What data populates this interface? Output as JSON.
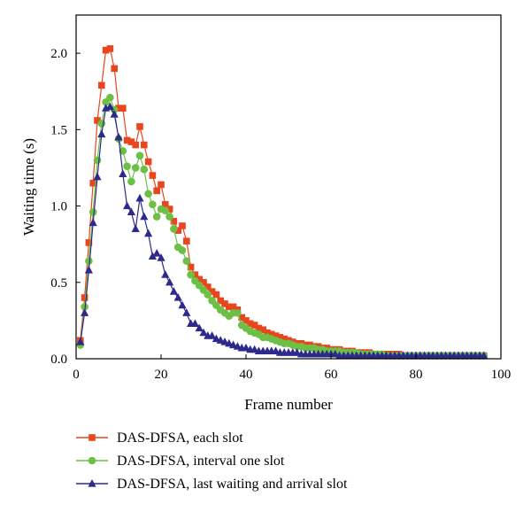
{
  "chart_data": {
    "type": "line",
    "title": "",
    "xlabel": "Frame number",
    "ylabel": "Waiting time (s)",
    "xlim": [
      0,
      100
    ],
    "ylim": [
      0,
      2.25
    ],
    "xticks": [
      0,
      20,
      40,
      60,
      80,
      100
    ],
    "yticks": [
      0.0,
      0.5,
      1.0,
      1.5,
      2.0
    ],
    "xtick_labels": [
      "0",
      "20",
      "40",
      "60",
      "80",
      "100"
    ],
    "ytick_labels": [
      "0.0",
      "0.5",
      "1.0",
      "1.5",
      "2.0"
    ],
    "grid": false,
    "legend_position": "bottom",
    "x": [
      1,
      2,
      3,
      4,
      5,
      6,
      7,
      8,
      9,
      10,
      11,
      12,
      13,
      14,
      15,
      16,
      17,
      18,
      19,
      20,
      21,
      22,
      23,
      24,
      25,
      26,
      27,
      28,
      29,
      30,
      31,
      32,
      33,
      34,
      35,
      36,
      37,
      38,
      39,
      40,
      41,
      42,
      43,
      44,
      45,
      46,
      47,
      48,
      49,
      50,
      51,
      52,
      53,
      54,
      55,
      56,
      57,
      58,
      59,
      60,
      61,
      62,
      63,
      64,
      65,
      66,
      67,
      68,
      69,
      70,
      71,
      72,
      73,
      74,
      75,
      76,
      77,
      78,
      79,
      80,
      81,
      82,
      83,
      84,
      85,
      86,
      87,
      88,
      89,
      90,
      91,
      92,
      93,
      94,
      95,
      96
    ],
    "series": [
      {
        "name": "DAS-DFSA, each slot",
        "color": "#e8461e",
        "marker": "square",
        "values": [
          0.12,
          0.4,
          0.76,
          1.15,
          1.56,
          1.79,
          2.02,
          2.03,
          1.9,
          1.64,
          1.64,
          1.43,
          1.42,
          1.4,
          1.52,
          1.4,
          1.29,
          1.2,
          1.1,
          1.14,
          1.01,
          0.98,
          0.9,
          0.84,
          0.87,
          0.77,
          0.6,
          0.55,
          0.52,
          0.5,
          0.47,
          0.44,
          0.42,
          0.38,
          0.36,
          0.34,
          0.34,
          0.32,
          0.27,
          0.25,
          0.23,
          0.22,
          0.2,
          0.19,
          0.17,
          0.16,
          0.15,
          0.14,
          0.13,
          0.12,
          0.11,
          0.1,
          0.1,
          0.09,
          0.09,
          0.08,
          0.08,
          0.07,
          0.07,
          0.06,
          0.06,
          0.06,
          0.05,
          0.05,
          0.05,
          0.04,
          0.04,
          0.04,
          0.04,
          0.03,
          0.03,
          0.03,
          0.03,
          0.03,
          0.03,
          0.03,
          0.02,
          0.02,
          0.02,
          0.02,
          0.02,
          0.02,
          0.02,
          0.02,
          0.02,
          0.02,
          0.02,
          0.02,
          0.02,
          0.02,
          0.02,
          0.02,
          0.02,
          0.02,
          0.02,
          0.02
        ]
      },
      {
        "name": "DAS-DFSA, interval one slot",
        "color": "#6dbf45",
        "marker": "circle",
        "values": [
          0.09,
          0.34,
          0.64,
          0.96,
          1.3,
          1.54,
          1.68,
          1.71,
          1.63,
          1.44,
          1.36,
          1.26,
          1.16,
          1.25,
          1.33,
          1.24,
          1.08,
          1.01,
          0.93,
          0.98,
          0.97,
          0.93,
          0.85,
          0.73,
          0.71,
          0.64,
          0.55,
          0.51,
          0.48,
          0.45,
          0.42,
          0.38,
          0.35,
          0.32,
          0.3,
          0.28,
          0.3,
          0.3,
          0.22,
          0.2,
          0.18,
          0.17,
          0.16,
          0.14,
          0.14,
          0.13,
          0.12,
          0.11,
          0.1,
          0.1,
          0.09,
          0.08,
          0.08,
          0.07,
          0.07,
          0.07,
          0.06,
          0.06,
          0.05,
          0.05,
          0.05,
          0.05,
          0.04,
          0.04,
          0.04,
          0.04,
          0.03,
          0.03,
          0.03,
          0.03,
          0.03,
          0.03,
          0.02,
          0.02,
          0.02,
          0.02,
          0.02,
          0.02,
          0.02,
          0.02,
          0.02,
          0.02,
          0.02,
          0.02,
          0.02,
          0.02,
          0.02,
          0.02,
          0.02,
          0.02,
          0.02,
          0.02,
          0.02,
          0.02,
          0.02,
          0.02
        ]
      },
      {
        "name": "DAS-DFSA, last waiting and arrival slot",
        "color": "#2e2a8c",
        "marker": "triangle",
        "values": [
          0.11,
          0.3,
          0.58,
          0.89,
          1.19,
          1.47,
          1.64,
          1.65,
          1.6,
          1.45,
          1.21,
          1.0,
          0.96,
          0.85,
          1.05,
          0.93,
          0.82,
          0.67,
          0.69,
          0.66,
          0.55,
          0.5,
          0.44,
          0.4,
          0.35,
          0.3,
          0.23,
          0.23,
          0.2,
          0.17,
          0.15,
          0.15,
          0.13,
          0.12,
          0.11,
          0.1,
          0.09,
          0.08,
          0.07,
          0.07,
          0.06,
          0.06,
          0.05,
          0.05,
          0.05,
          0.05,
          0.05,
          0.04,
          0.04,
          0.04,
          0.04,
          0.04,
          0.03,
          0.03,
          0.03,
          0.03,
          0.03,
          0.03,
          0.03,
          0.03,
          0.03,
          0.02,
          0.02,
          0.02,
          0.02,
          0.02,
          0.02,
          0.02,
          0.02,
          0.02,
          0.02,
          0.02,
          0.02,
          0.02,
          0.02,
          0.02,
          0.02,
          0.02,
          0.02,
          0.02,
          0.02,
          0.02,
          0.02,
          0.02,
          0.02,
          0.02,
          0.02,
          0.02,
          0.02,
          0.02,
          0.02,
          0.02,
          0.02,
          0.02,
          0.02,
          0.02
        ]
      }
    ]
  }
}
